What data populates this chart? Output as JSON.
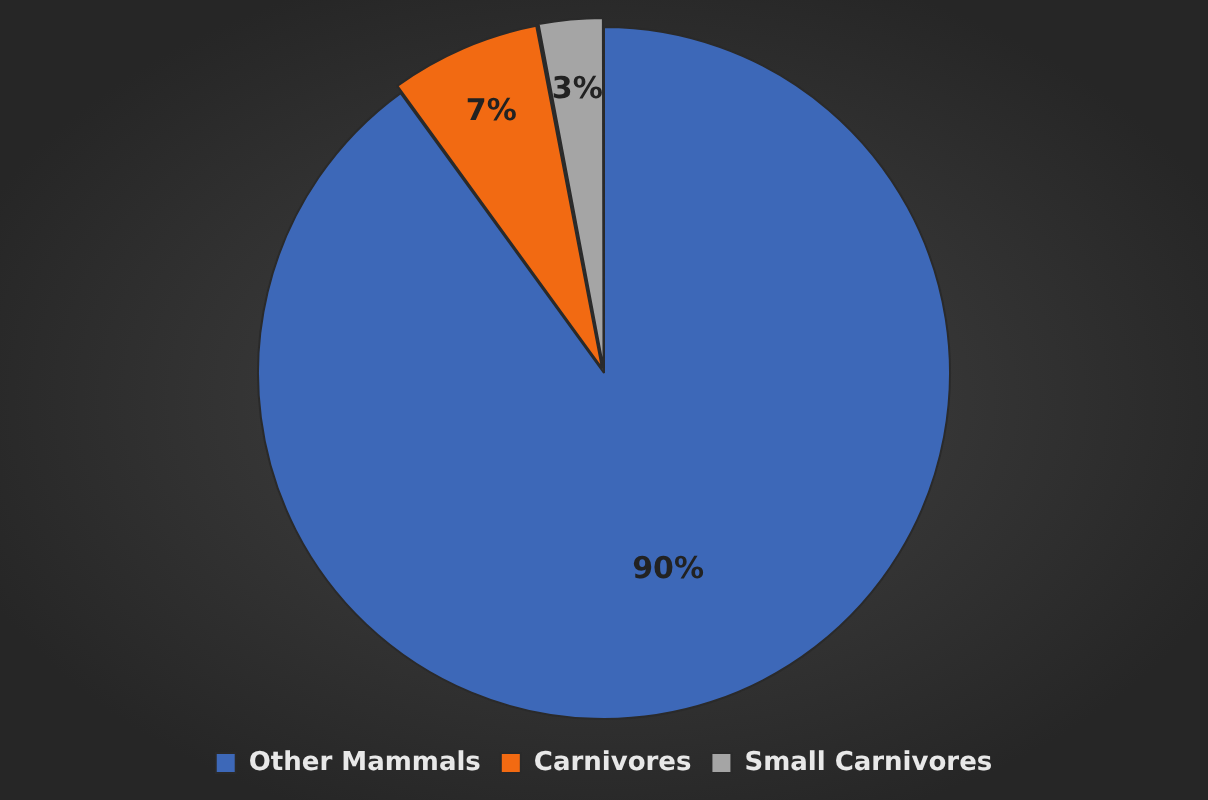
{
  "chart_data": {
    "type": "pie",
    "categories": [
      "Other Mammals",
      "Carnivores",
      "Small Carnivores"
    ],
    "values": [
      90,
      7,
      3
    ],
    "colors": [
      "#3d68b8",
      "#f26a12",
      "#a5a5a5"
    ],
    "value_labels": [
      "90%",
      "7%",
      "3%"
    ],
    "legend": "bottom"
  }
}
